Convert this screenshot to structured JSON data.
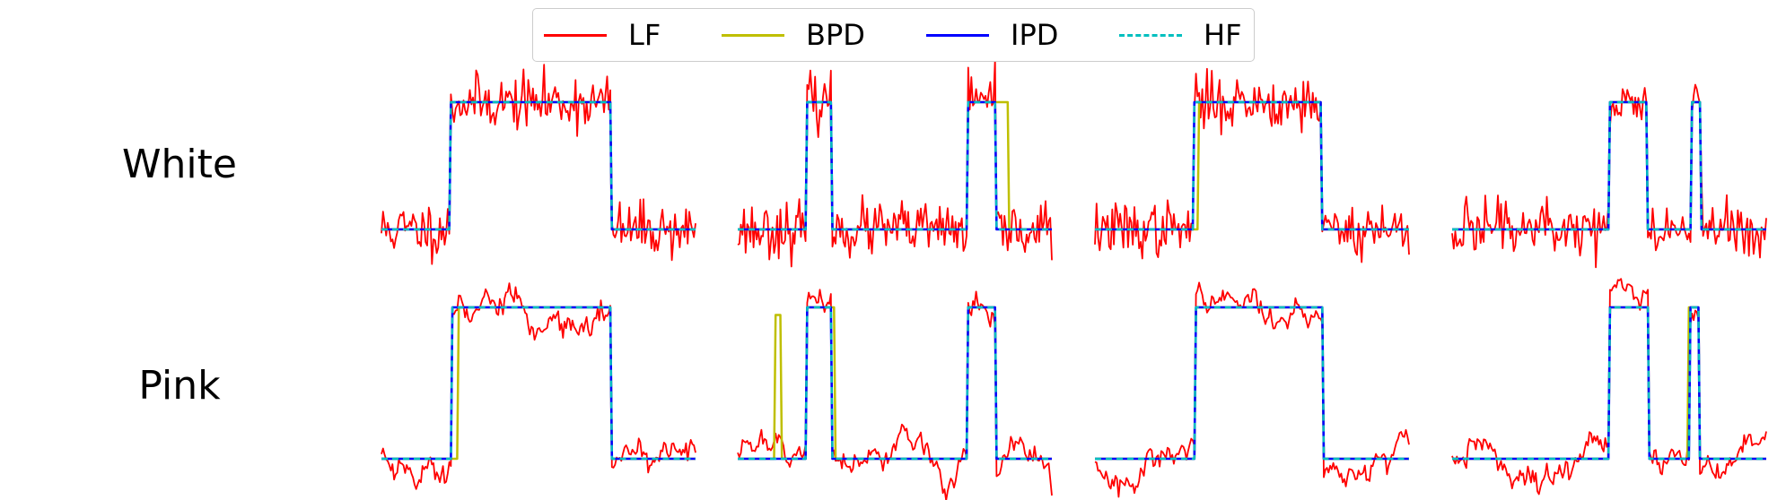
{
  "legend": [
    {
      "label": "LF",
      "color": "#ff0000",
      "style": "solid"
    },
    {
      "label": "BPD",
      "color": "#bfbf00",
      "style": "solid"
    },
    {
      "label": "IPD",
      "color": "#0000ff",
      "style": "solid"
    },
    {
      "label": "HF",
      "color": "#00bfbf",
      "style": "dashed"
    }
  ],
  "rows": [
    {
      "label": "White"
    },
    {
      "label": "Pink"
    }
  ],
  "chart_data": {
    "type": "line",
    "grid": false,
    "legend_placement": "top-center",
    "axes_visible": false,
    "n_samples": 200,
    "ylim": [
      -0.3,
      1.3
    ],
    "series_names": [
      "LF",
      "BPD",
      "IPD",
      "HF"
    ],
    "panels": [
      {
        "row": "White",
        "col": 1,
        "noise": "white",
        "amplitude": 0.12,
        "seed": 11,
        "segments": [
          [
            0,
            0
          ],
          [
            44,
            1
          ],
          [
            146,
            0
          ]
        ],
        "bpd_deviations": []
      },
      {
        "row": "White",
        "col": 2,
        "noise": "white",
        "amplitude": 0.12,
        "seed": 23,
        "segments": [
          [
            0,
            0
          ],
          [
            44,
            1
          ],
          [
            60,
            0
          ],
          [
            146,
            1
          ],
          [
            164,
            0
          ]
        ],
        "bpd_deviations": [
          {
            "from": 164,
            "to": 171,
            "value": 1
          }
        ]
      },
      {
        "row": "White",
        "col": 3,
        "noise": "white",
        "amplitude": 0.12,
        "seed": 37,
        "segments": [
          [
            0,
            0
          ],
          [
            63,
            1
          ],
          [
            144,
            0
          ]
        ],
        "bpd_deviations": [
          {
            "from": 63,
            "to": 65,
            "value": 0
          }
        ]
      },
      {
        "row": "White",
        "col": 4,
        "noise": "white",
        "amplitude": 0.12,
        "seed": 49,
        "segments": [
          [
            0,
            0
          ],
          [
            100,
            1
          ],
          [
            124,
            0
          ],
          [
            152,
            1
          ],
          [
            158,
            0
          ]
        ],
        "bpd_deviations": []
      },
      {
        "row": "Pink",
        "col": 1,
        "noise": "pink",
        "amplitude": 0.12,
        "seed": 53,
        "segments": [
          [
            0,
            0
          ],
          [
            45,
            1
          ],
          [
            146,
            0
          ]
        ],
        "bpd_deviations": [
          {
            "from": 45,
            "to": 48,
            "value": 0
          }
        ]
      },
      {
        "row": "Pink",
        "col": 2,
        "noise": "pink",
        "amplitude": 0.1,
        "seed": 61,
        "segments": [
          [
            0,
            0
          ],
          [
            44,
            1
          ],
          [
            60,
            0
          ],
          [
            146,
            1
          ],
          [
            164,
            0
          ]
        ],
        "bpd_deviations": [
          {
            "from": 24,
            "to": 25,
            "value": 0.95
          },
          {
            "from": 26,
            "to": 27,
            "value": 0.95
          },
          {
            "from": 60,
            "to": 61,
            "value": 1
          }
        ]
      },
      {
        "row": "Pink",
        "col": 3,
        "noise": "pink",
        "amplitude": 0.12,
        "seed": 71,
        "segments": [
          [
            0,
            0
          ],
          [
            64,
            1
          ],
          [
            145,
            0
          ]
        ],
        "bpd_deviations": []
      },
      {
        "row": "Pink",
        "col": 4,
        "noise": "pink",
        "amplitude": 0.1,
        "seed": 83,
        "segments": [
          [
            0,
            0
          ],
          [
            100,
            1
          ],
          [
            125,
            0
          ],
          [
            151,
            1
          ],
          [
            157,
            0
          ]
        ],
        "bpd_deviations": [
          {
            "from": 150,
            "to": 151,
            "value": 1
          }
        ]
      }
    ]
  }
}
